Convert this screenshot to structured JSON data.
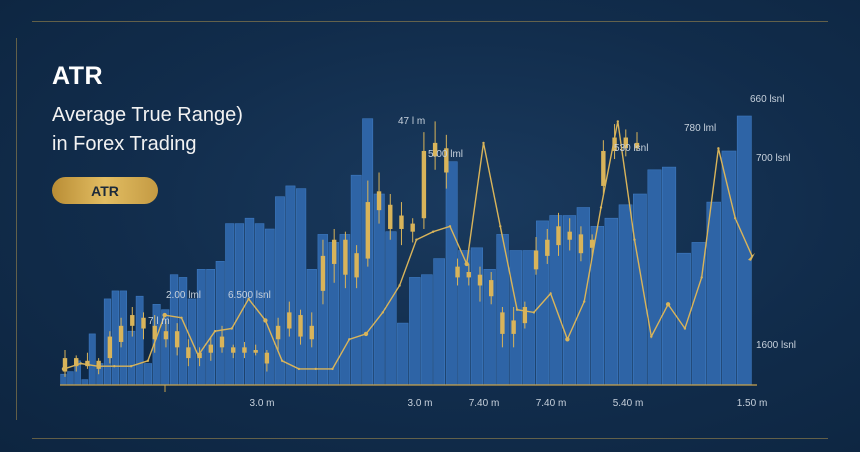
{
  "title": "ATR",
  "subtitle_line1": "Average True Range)",
  "subtitle_line2": "in Forex Trading",
  "badge": "ATR",
  "colors": {
    "background": "#112c4b",
    "bar": "#2e64a6",
    "bar_edge": "#3d78bf",
    "candle": "#d9b45a",
    "line": "#d9b45a",
    "axis": "#c9a34e",
    "label": "#c7d1dc"
  },
  "chart_data": {
    "type": "bar",
    "title": "ATR",
    "ylim": [
      0,
      100
    ],
    "grid": false,
    "bars": [
      4,
      5,
      9,
      2,
      19,
      8,
      32,
      35,
      35,
      20,
      33,
      8,
      30,
      28,
      41,
      40,
      32,
      43,
      43,
      46,
      60,
      60,
      62,
      60,
      58,
      70,
      74,
      73,
      43,
      56,
      53,
      56,
      78,
      99,
      71,
      57,
      23,
      40,
      41,
      47,
      83,
      50,
      51,
      43,
      56,
      50,
      50,
      61,
      63,
      63,
      66,
      59,
      62,
      67,
      71,
      80,
      81,
      49,
      53,
      68,
      87,
      100
    ],
    "atr_line": [
      6,
      8,
      7,
      7,
      7,
      9,
      26,
      25,
      11,
      20,
      21,
      32,
      24,
      9,
      6,
      6,
      6,
      17,
      19,
      27,
      37,
      54,
      57,
      59,
      45,
      90,
      59,
      28,
      27,
      34,
      17,
      31,
      66,
      98,
      54,
      18,
      30,
      21,
      40,
      88,
      62,
      48
    ],
    "candles": [
      {
        "o": 5,
        "c": 10,
        "h": 13,
        "l": 3
      },
      {
        "o": 10,
        "c": 7,
        "h": 11,
        "l": 5
      },
      {
        "o": 7,
        "c": 9,
        "h": 12,
        "l": 6
      },
      {
        "o": 9,
        "c": 6,
        "h": 10,
        "l": 4
      },
      {
        "o": 10,
        "c": 18,
        "h": 20,
        "l": 8
      },
      {
        "o": 16,
        "c": 22,
        "h": 25,
        "l": 14
      },
      {
        "o": 22,
        "c": 26,
        "h": 29,
        "l": 18
      },
      {
        "o": 25,
        "c": 21,
        "h": 27,
        "l": 17
      },
      {
        "o": 22,
        "c": 17,
        "h": 26,
        "l": 12
      },
      {
        "o": 17,
        "c": 20,
        "h": 24,
        "l": 14
      },
      {
        "o": 20,
        "c": 14,
        "h": 23,
        "l": 11
      },
      {
        "o": 14,
        "c": 10,
        "h": 17,
        "l": 7
      },
      {
        "o": 10,
        "c": 12,
        "h": 14,
        "l": 7
      },
      {
        "o": 12,
        "c": 15,
        "h": 18,
        "l": 9
      },
      {
        "o": 14,
        "c": 18,
        "h": 22,
        "l": 12
      },
      {
        "o": 12,
        "c": 14,
        "h": 15,
        "l": 10
      },
      {
        "o": 14,
        "c": 12,
        "h": 16,
        "l": 10
      },
      {
        "o": 12,
        "c": 13,
        "h": 15,
        "l": 11
      },
      {
        "o": 12,
        "c": 8,
        "h": 13,
        "l": 5
      },
      {
        "o": 17,
        "c": 22,
        "h": 25,
        "l": 13
      },
      {
        "o": 21,
        "c": 27,
        "h": 31,
        "l": 18
      },
      {
        "o": 26,
        "c": 18,
        "h": 28,
        "l": 15
      },
      {
        "o": 17,
        "c": 22,
        "h": 27,
        "l": 14
      },
      {
        "o": 35,
        "c": 48,
        "h": 54,
        "l": 30
      },
      {
        "o": 45,
        "c": 54,
        "h": 58,
        "l": 38
      },
      {
        "o": 54,
        "c": 41,
        "h": 57,
        "l": 36
      },
      {
        "o": 40,
        "c": 49,
        "h": 52,
        "l": 36
      },
      {
        "o": 47,
        "c": 68,
        "h": 76,
        "l": 44
      },
      {
        "o": 65,
        "c": 72,
        "h": 79,
        "l": 60
      },
      {
        "o": 67,
        "c": 58,
        "h": 71,
        "l": 54
      },
      {
        "o": 58,
        "c": 63,
        "h": 68,
        "l": 52
      },
      {
        "o": 57,
        "c": 60,
        "h": 62,
        "l": 53
      },
      {
        "o": 62,
        "c": 87,
        "h": 94,
        "l": 58
      },
      {
        "o": 85,
        "c": 90,
        "h": 98,
        "l": 80
      },
      {
        "o": 88,
        "c": 79,
        "h": 93,
        "l": 73
      },
      {
        "o": 44,
        "c": 40,
        "h": 47,
        "l": 37
      },
      {
        "o": 40,
        "c": 42,
        "h": 45,
        "l": 37
      },
      {
        "o": 41,
        "c": 37,
        "h": 44,
        "l": 31
      },
      {
        "o": 39,
        "c": 33,
        "h": 42,
        "l": 30
      },
      {
        "o": 27,
        "c": 19,
        "h": 29,
        "l": 14
      },
      {
        "o": 19,
        "c": 24,
        "h": 29,
        "l": 14
      },
      {
        "o": 23,
        "c": 29,
        "h": 31,
        "l": 21
      },
      {
        "o": 43,
        "c": 50,
        "h": 55,
        "l": 41
      },
      {
        "o": 48,
        "c": 54,
        "h": 58,
        "l": 45
      },
      {
        "o": 52,
        "c": 59,
        "h": 64,
        "l": 48
      },
      {
        "o": 54,
        "c": 57,
        "h": 62,
        "l": 50
      },
      {
        "o": 56,
        "c": 49,
        "h": 59,
        "l": 46
      },
      {
        "o": 51,
        "c": 54,
        "h": 56,
        "l": 48
      },
      {
        "o": 74,
        "c": 87,
        "h": 91,
        "l": 71
      },
      {
        "o": 87,
        "c": 92,
        "h": 97,
        "l": 84
      },
      {
        "o": 92,
        "c": 88,
        "h": 95,
        "l": 85
      },
      {
        "o": 88,
        "c": 90,
        "h": 94,
        "l": 87
      }
    ],
    "annotations": [
      "2.00 lml",
      "6.500 lsnl",
      "7 l m",
      "47 l m",
      "5.00 lml",
      "530 lsnl",
      "780 lml",
      "660 lsnl",
      "700 lsnl",
      "1600 lsnl"
    ],
    "x_ticks": [
      "3.0 m",
      "3.0 m",
      "7.40 m",
      "7.40 m",
      "5.40 m",
      "1.50 m"
    ]
  }
}
